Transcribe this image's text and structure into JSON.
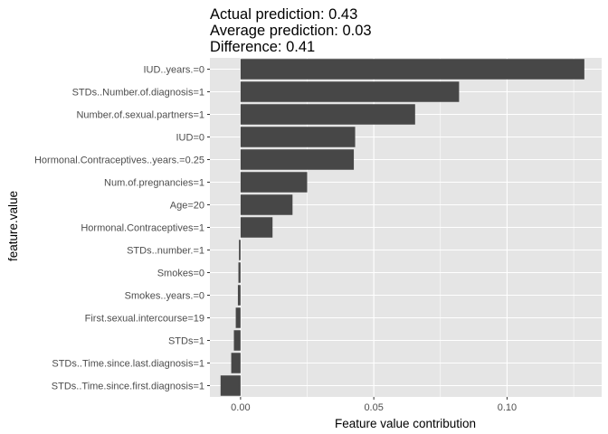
{
  "chart_data": {
    "type": "bar",
    "orientation": "horizontal",
    "title_lines": [
      "Actual prediction: 0.43",
      "Average prediction: 0.03",
      "Difference: 0.41"
    ],
    "xlabel": "Feature value contribution",
    "ylabel": "feature.value",
    "categories": [
      "IUD..years.=0",
      "STDs..Number.of.diagnosis=1",
      "Number.of.sexual.partners=1",
      "IUD=0",
      "Hormonal.Contraceptives..years.=0.25",
      "Num.of.pregnancies=1",
      "Age=20",
      "Hormonal.Contraceptives=1",
      "STDs..number.=1",
      "Smokes=0",
      "Smokes..years.=0",
      "First.sexual.intercourse=19",
      "STDs=1",
      "STDs..Time.since.last.diagnosis=1",
      "STDs..Time.since.first.diagnosis=1"
    ],
    "values": [
      0.129,
      0.082,
      0.0655,
      0.043,
      0.0425,
      0.025,
      0.0195,
      0.012,
      -0.0006,
      -0.0008,
      -0.001,
      -0.0018,
      -0.0025,
      -0.0035,
      -0.0075
    ],
    "xlim": [
      -0.0115,
      0.1355
    ],
    "xticks": [
      0.0,
      0.05,
      0.1
    ],
    "xtick_labels": [
      "0.00",
      "0.05",
      "0.10"
    ],
    "grid": true,
    "bar_color": "#474747",
    "panel_color": "#e5e5e5",
    "grid_color": "#ffffff"
  }
}
